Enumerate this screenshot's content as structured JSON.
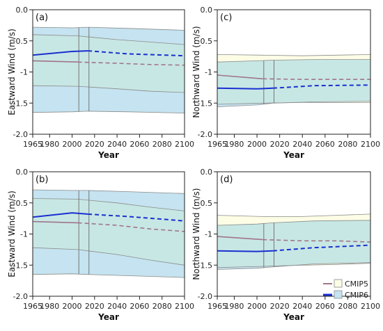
{
  "legend": {
    "items": [
      {
        "label": "CMIP5",
        "line_color": "#a0758a",
        "band_color": "#fdfde6"
      },
      {
        "label": "CMIP6",
        "line_color": "#1a2fd0",
        "band_color": "#c5e3f0"
      }
    ]
  },
  "colors": {
    "overlap": "#c7e7e4",
    "band_edge": "#8a8a8a",
    "marker_line": "#777777"
  },
  "chart_data": [
    {
      "type": "line",
      "panel_label": "(a)",
      "xlabel": "Year",
      "ylabel": "Eastward Wind (m/s)",
      "xlim": [
        1965,
        2100
      ],
      "ylim": [
        -2.0,
        0.0
      ],
      "xticks": [
        "1965",
        "1980",
        "2000",
        "2020",
        "2040",
        "2060",
        "2080",
        "2100"
      ],
      "yticks": [
        "0.0",
        "-0.5",
        "-1",
        "-1.5",
        "-2.0"
      ],
      "vlines": [
        2006,
        2015
      ],
      "series": [
        {
          "name": "CMIP5",
          "x": [
            1965,
            2005,
            2040,
            2070,
            2100
          ],
          "mean": [
            -0.82,
            -0.84,
            -0.86,
            -0.88,
            -0.89
          ],
          "upper": [
            -0.4,
            -0.42,
            -0.48,
            -0.52,
            -0.56
          ],
          "lower": [
            -1.22,
            -1.23,
            -1.27,
            -1.31,
            -1.33
          ],
          "historical_end": 2005
        },
        {
          "name": "CMIP6",
          "x": [
            1965,
            2000,
            2014,
            2050,
            2100
          ],
          "mean": [
            -0.73,
            -0.67,
            -0.66,
            -0.71,
            -0.74
          ],
          "upper": [
            -0.28,
            -0.29,
            -0.28,
            -0.3,
            -0.33
          ],
          "lower": [
            -1.65,
            -1.64,
            -1.63,
            -1.64,
            -1.66
          ],
          "historical_end": 2014
        }
      ]
    },
    {
      "type": "line",
      "panel_label": "(c)",
      "xlabel": "Year",
      "ylabel": "Northward Wind (m/s)",
      "xlim": [
        1965,
        2100
      ],
      "ylim": [
        -2.0,
        0.0
      ],
      "xticks": [
        "1965",
        "1980",
        "2000",
        "2020",
        "2040",
        "2060",
        "2080",
        "2100"
      ],
      "yticks": [
        "0.0",
        "-0.5",
        "-1",
        "-1.5",
        "-2.0"
      ],
      "vlines": [
        2006,
        2015
      ],
      "series": [
        {
          "name": "CMIP5",
          "x": [
            1965,
            2005,
            2040,
            2070,
            2100
          ],
          "mean": [
            -1.05,
            -1.11,
            -1.12,
            -1.12,
            -1.12
          ],
          "upper": [
            -0.72,
            -0.73,
            -0.74,
            -0.73,
            -0.72
          ],
          "lower": [
            -1.52,
            -1.5,
            -1.49,
            -1.49,
            -1.49
          ],
          "historical_end": 2005
        },
        {
          "name": "CMIP6",
          "x": [
            1965,
            2000,
            2014,
            2050,
            2100
          ],
          "mean": [
            -1.26,
            -1.27,
            -1.26,
            -1.22,
            -1.21
          ],
          "upper": [
            -0.84,
            -0.82,
            -0.81,
            -0.8,
            -0.8
          ],
          "lower": [
            -1.56,
            -1.53,
            -1.5,
            -1.48,
            -1.47
          ],
          "historical_end": 2014
        }
      ]
    },
    {
      "type": "line",
      "panel_label": "(b)",
      "xlabel": "Year",
      "ylabel": "Eastward Wind (m/s)",
      "xlim": [
        1965,
        2100
      ],
      "ylim": [
        -2.0,
        0.0
      ],
      "xticks": [
        "1965",
        "1980",
        "2000",
        "2020",
        "2040",
        "2060",
        "2080",
        "2100"
      ],
      "yticks": [
        "0.0",
        "-0.5",
        "-1",
        "-1.5",
        "-2.0"
      ],
      "vlines": [
        2006,
        2015
      ],
      "series": [
        {
          "name": "CMIP5",
          "x": [
            1965,
            2005,
            2040,
            2070,
            2100
          ],
          "mean": [
            -0.8,
            -0.82,
            -0.86,
            -0.92,
            -0.96
          ],
          "upper": [
            -0.43,
            -0.44,
            -0.5,
            -0.57,
            -0.63
          ],
          "lower": [
            -1.22,
            -1.25,
            -1.33,
            -1.42,
            -1.5
          ],
          "historical_end": 2005
        },
        {
          "name": "CMIP6",
          "x": [
            1965,
            2000,
            2014,
            2050,
            2100
          ],
          "mean": [
            -0.73,
            -0.66,
            -0.68,
            -0.72,
            -0.79
          ],
          "upper": [
            -0.29,
            -0.3,
            -0.3,
            -0.32,
            -0.35
          ],
          "lower": [
            -1.65,
            -1.64,
            -1.65,
            -1.67,
            -1.7
          ],
          "historical_end": 2014
        }
      ]
    },
    {
      "type": "line",
      "panel_label": "(d)",
      "xlabel": "Year",
      "ylabel": "Northward Wind (m/s)",
      "xlim": [
        1965,
        2100
      ],
      "ylim": [
        -2.0,
        0.0
      ],
      "xticks": [
        "1965",
        "1980",
        "2000",
        "2020",
        "2040",
        "2060",
        "2080",
        "2100"
      ],
      "yticks": [
        "0.0",
        "-0.5",
        "-1",
        "-1.5",
        "-2.0"
      ],
      "vlines": [
        2006,
        2015
      ],
      "series": [
        {
          "name": "CMIP5",
          "x": [
            1965,
            2005,
            2040,
            2070,
            2100
          ],
          "mean": [
            -1.04,
            -1.09,
            -1.11,
            -1.11,
            -1.13
          ],
          "upper": [
            -0.7,
            -0.72,
            -0.72,
            -0.7,
            -0.68
          ],
          "lower": [
            -1.54,
            -1.52,
            -1.5,
            -1.49,
            -1.47
          ],
          "historical_end": 2005
        },
        {
          "name": "CMIP6",
          "x": [
            1965,
            2000,
            2014,
            2050,
            2100
          ],
          "mean": [
            -1.27,
            -1.28,
            -1.27,
            -1.22,
            -1.18
          ],
          "upper": [
            -0.86,
            -0.84,
            -0.82,
            -0.79,
            -0.78
          ],
          "lower": [
            -1.57,
            -1.55,
            -1.53,
            -1.48,
            -1.46
          ],
          "historical_end": 2014
        }
      ]
    }
  ]
}
